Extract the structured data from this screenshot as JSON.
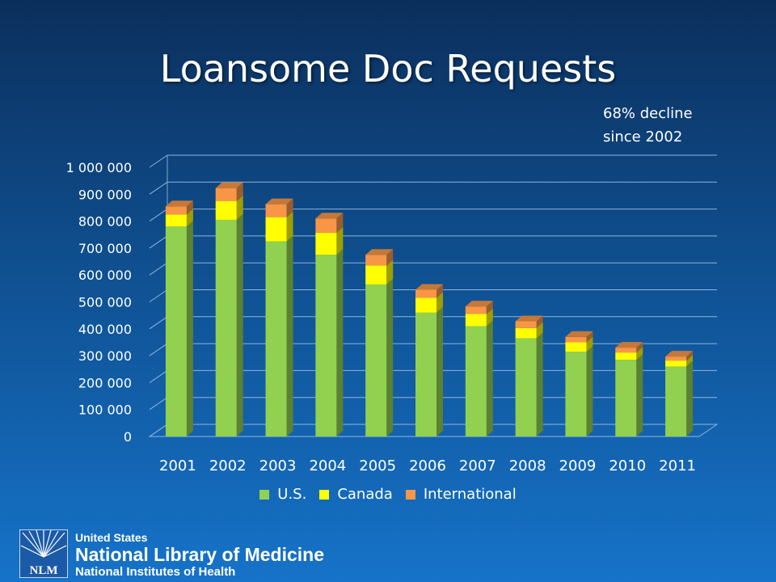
{
  "title": "Loansome Doc Requests",
  "annotation": {
    "line1": "68% decline",
    "line2": "since 2002"
  },
  "footer": {
    "logo_text": "NLM",
    "org_line1": "United States",
    "org_line2": "National Library of Medicine",
    "org_line3": "National Institutes of Health"
  },
  "colors": {
    "us": "#92d050",
    "canada": "#ffff00",
    "international": "#f79646",
    "gridline": "#8fb4dc"
  },
  "chart_data": {
    "type": "bar",
    "stacked": true,
    "three_d": true,
    "categories": [
      "2001",
      "2002",
      "2003",
      "2004",
      "2005",
      "2006",
      "2007",
      "2008",
      "2009",
      "2010",
      "2011"
    ],
    "series": [
      {
        "name": "U.S.",
        "color": "#92d050",
        "values": [
          780000,
          805000,
          725000,
          675000,
          565000,
          460000,
          410000,
          365000,
          315000,
          285000,
          260000
        ]
      },
      {
        "name": "Canada",
        "color": "#ffff00",
        "values": [
          45000,
          70000,
          90000,
          82000,
          70000,
          55000,
          45000,
          38000,
          35000,
          27000,
          22000
        ]
      },
      {
        "name": "International",
        "color": "#f79646",
        "values": [
          30000,
          48000,
          48000,
          53000,
          40000,
          30000,
          28000,
          25000,
          20000,
          18000,
          15000
        ]
      }
    ],
    "yticks": [
      "0",
      "100 000",
      "200 000",
      "300 000",
      "400 000",
      "500 000",
      "600 000",
      "700 000",
      "800 000",
      "900 000",
      "1 000 000"
    ],
    "ylim": [
      0,
      1000000
    ],
    "grid": true,
    "legend_position": "bottom"
  }
}
